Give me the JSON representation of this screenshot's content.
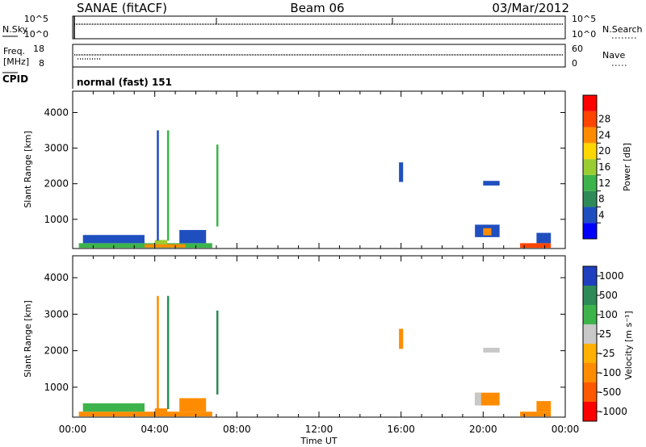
{
  "header": {
    "station": "SANAE (fitACF)",
    "beam": "Beam 06",
    "date": "03/Mar/2012"
  },
  "aux_panels": {
    "nsky_label": "N.Sky",
    "nsearch_label": "N.Search",
    "freq_label_1": "Freq.",
    "freq_label_2": "[MHz]",
    "nave_label": "Nave",
    "cpid_label": "CPID",
    "noise_left_ticks": [
      "10^5",
      "10^0"
    ],
    "noise_right_ticks": [
      "10^5",
      "10^0"
    ],
    "freq_ticks": [
      "18",
      "8"
    ],
    "nave_ticks": [
      "60",
      "0"
    ],
    "cpid_text": "normal (fast) 151"
  },
  "time_axis": {
    "label": "Time UT",
    "ticks": [
      "00:00",
      "04:00",
      "08:00",
      "12:00",
      "16:00",
      "20:00",
      "00:00"
    ]
  },
  "colors": {
    "power_scale": [
      "#0000ff",
      "#1f4fbf",
      "#2e8b57",
      "#3cb44b",
      "#9acd32",
      "#ffd700",
      "#ff8c00",
      "#ff4500",
      "#ff0000"
    ],
    "velocity_scale": [
      "#1f3fbf",
      "#2e8b57",
      "#3cb44b",
      "#c8c8c8",
      "#ffb000",
      "#ff8c00",
      "#ff5a00",
      "#ff0000"
    ]
  },
  "chart_data": [
    {
      "type": "heatmap",
      "xlabel": "",
      "ylabel": "Slant Range [km]",
      "xlim": [
        0,
        24
      ],
      "ylim": [
        180,
        4600
      ],
      "yticks": [
        1000,
        2000,
        3000,
        4000
      ],
      "colorbar": {
        "label": "Power [dB]",
        "ticks": [
          "4",
          "8",
          "12",
          "16",
          "20",
          "24",
          "28"
        ],
        "range": [
          0,
          32
        ]
      },
      "patches": [
        {
          "t0": 0.3,
          "t1": 6.8,
          "r0": 200,
          "r1": 330,
          "v": 12
        },
        {
          "t0": 3.5,
          "t1": 5.5,
          "r0": 210,
          "r1": 300,
          "v": 22
        },
        {
          "t0": 4.0,
          "t1": 4.6,
          "r0": 300,
          "r1": 420,
          "v": 16
        },
        {
          "t0": 0.5,
          "t1": 3.5,
          "r0": 330,
          "r1": 560,
          "v": 6
        },
        {
          "t0": 5.2,
          "t1": 6.5,
          "r0": 330,
          "r1": 700,
          "v": 6
        },
        {
          "t0": 15.9,
          "t1": 16.1,
          "r0": 2050,
          "r1": 2600,
          "v": 5
        },
        {
          "t0": 19.6,
          "t1": 20.8,
          "r0": 500,
          "r1": 850,
          "v": 5
        },
        {
          "t0": 20.0,
          "t1": 20.4,
          "r0": 550,
          "r1": 750,
          "v": 22
        },
        {
          "t0": 20.0,
          "t1": 20.8,
          "r0": 1950,
          "r1": 2080,
          "v": 6
        },
        {
          "t0": 21.8,
          "t1": 23.3,
          "r0": 200,
          "r1": 330,
          "v": 26
        },
        {
          "t0": 22.6,
          "t1": 23.3,
          "r0": 330,
          "r1": 620,
          "v": 5
        },
        {
          "t0": 4.1,
          "t1": 4.2,
          "r0": 400,
          "r1": 3500,
          "v": 6
        },
        {
          "t0": 4.6,
          "t1": 4.7,
          "r0": 400,
          "r1": 3500,
          "v": 12
        },
        {
          "t0": 7.0,
          "t1": 7.1,
          "r0": 800,
          "r1": 3100,
          "v": 14
        }
      ]
    },
    {
      "type": "heatmap",
      "xlabel": "Time UT",
      "ylabel": "Slant Range [km]",
      "xlim": [
        0,
        24
      ],
      "ylim": [
        180,
        4600
      ],
      "yticks": [
        1000,
        2000,
        3000,
        4000
      ],
      "colorbar": {
        "label": "Velocity [m s⁻¹]",
        "ticks": [
          "1000",
          "500",
          "100",
          "25",
          "-25",
          "-100",
          "-500",
          "-1000"
        ],
        "range": [
          -1200,
          1200
        ]
      },
      "patches": [
        {
          "t0": 0.3,
          "t1": 6.8,
          "r0": 200,
          "r1": 330,
          "v": -150
        },
        {
          "t0": 3.5,
          "t1": 5.5,
          "r0": 210,
          "r1": 300,
          "v": -300
        },
        {
          "t0": 4.0,
          "t1": 4.6,
          "r0": 300,
          "r1": 420,
          "v": -200
        },
        {
          "t0": 0.5,
          "t1": 3.5,
          "r0": 330,
          "r1": 560,
          "v": 60
        },
        {
          "t0": 5.2,
          "t1": 6.5,
          "r0": 330,
          "r1": 700,
          "v": -150
        },
        {
          "t0": 15.9,
          "t1": 16.1,
          "r0": 2050,
          "r1": 2600,
          "v": -300
        },
        {
          "t0": 19.6,
          "t1": 20.8,
          "r0": 500,
          "r1": 850,
          "v": -350
        },
        {
          "t0": 19.6,
          "t1": 19.9,
          "r0": 500,
          "r1": 850,
          "v": 0
        },
        {
          "t0": 20.0,
          "t1": 20.8,
          "r0": 1950,
          "r1": 2080,
          "v": 0
        },
        {
          "t0": 21.8,
          "t1": 23.3,
          "r0": 200,
          "r1": 330,
          "v": -300
        },
        {
          "t0": 22.6,
          "t1": 23.3,
          "r0": 330,
          "r1": 620,
          "v": -300
        },
        {
          "t0": 4.1,
          "t1": 4.2,
          "r0": 400,
          "r1": 3500,
          "v": -300
        },
        {
          "t0": 4.6,
          "t1": 4.7,
          "r0": 400,
          "r1": 3500,
          "v": 150
        },
        {
          "t0": 7.0,
          "t1": 7.1,
          "r0": 800,
          "r1": 3100,
          "v": 150
        }
      ]
    }
  ]
}
